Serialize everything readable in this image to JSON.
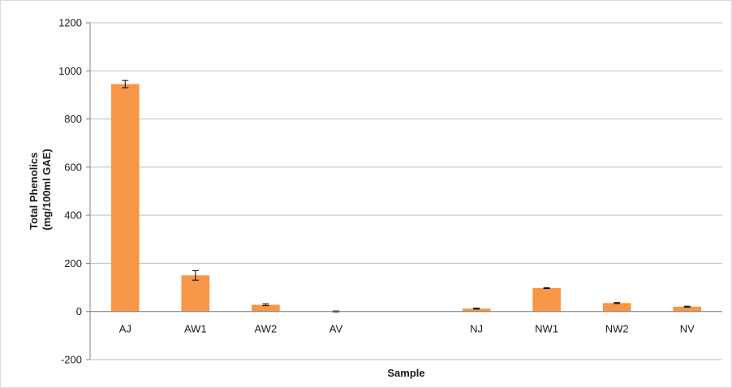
{
  "chart_data": {
    "type": "bar",
    "title": "",
    "xlabel": "Sample",
    "ylabel_line1": "Total Phenolics",
    "ylabel_line2": "(mg/100ml GAE)",
    "ylim": [
      -200,
      1200
    ],
    "yticks": [
      -200,
      0,
      200,
      400,
      600,
      800,
      1000,
      1200
    ],
    "grid": true,
    "legend": "none",
    "bar_color": "#F79646",
    "categories": [
      "AJ",
      "AW1",
      "AW2",
      "AV",
      "",
      "NJ",
      "NW1",
      "NW2",
      "NV"
    ],
    "values": [
      945,
      150,
      28,
      0,
      null,
      12,
      97,
      35,
      20
    ],
    "errors": [
      15,
      20,
      4,
      2,
      null,
      2,
      2,
      2,
      2
    ]
  }
}
